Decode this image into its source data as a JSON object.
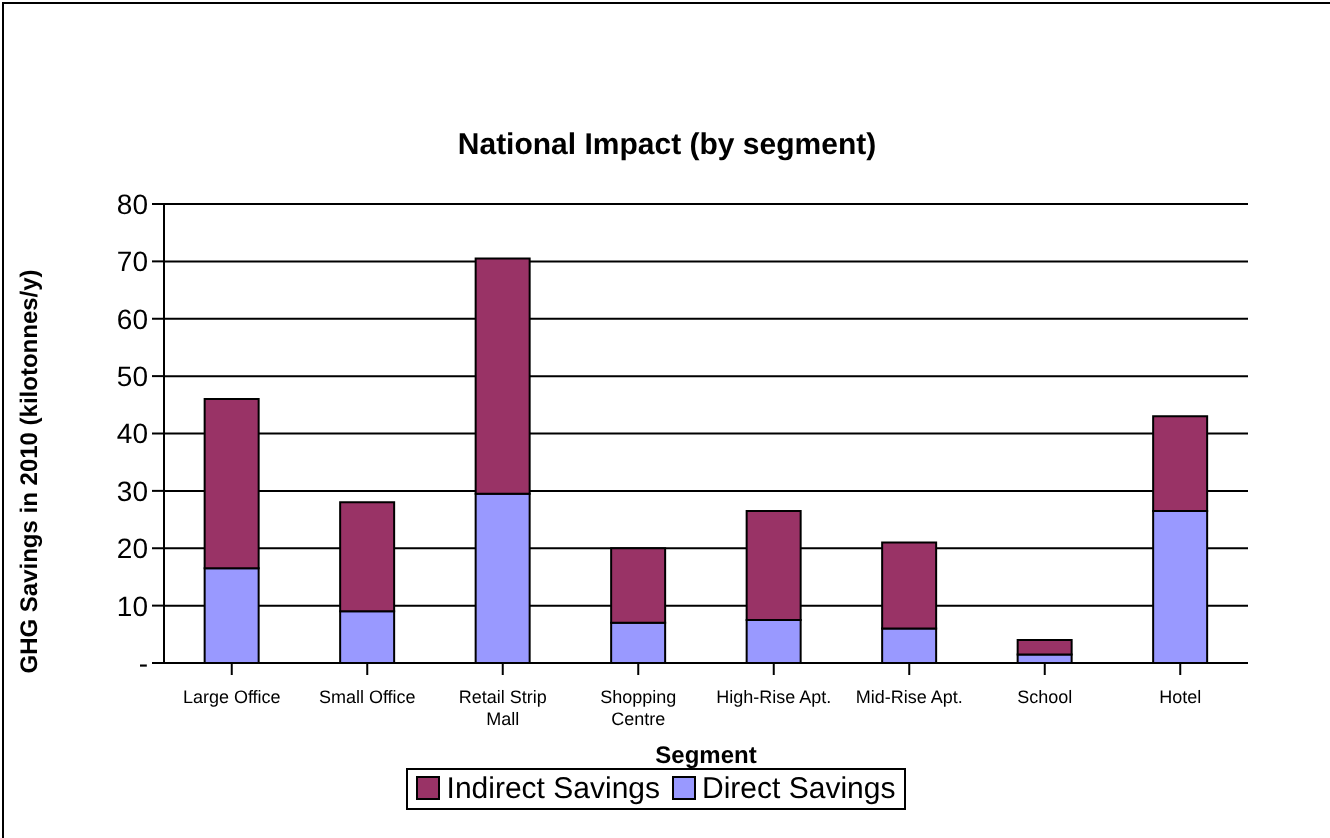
{
  "chart_data": {
    "type": "bar",
    "title": "National Impact (by segment)",
    "xlabel": "Segment",
    "ylabel": "GHG Savings in 2010 (kilotonnes/y)",
    "categories": [
      "Large Office",
      "Small Office",
      "Retail Strip Mall",
      "Shopping Centre",
      "High-Rise Apt.",
      "Mid-Rise Apt.",
      "School",
      "Hotel"
    ],
    "stacked": true,
    "series": [
      {
        "name": "Direct Savings",
        "color": "#9999ff",
        "values": [
          16.5,
          9,
          29.5,
          7,
          7.5,
          6,
          1.5,
          26.5
        ]
      },
      {
        "name": "Indirect Savings",
        "color": "#993366",
        "values": [
          29.5,
          19,
          41,
          13,
          19,
          15,
          2.5,
          16.5
        ]
      }
    ],
    "ylim": [
      0,
      80
    ],
    "yticks": [
      {
        "value": 0,
        "label": "-"
      },
      10,
      20,
      30,
      40,
      50,
      60,
      70,
      80
    ],
    "grid": "y",
    "legend": "bottom"
  }
}
